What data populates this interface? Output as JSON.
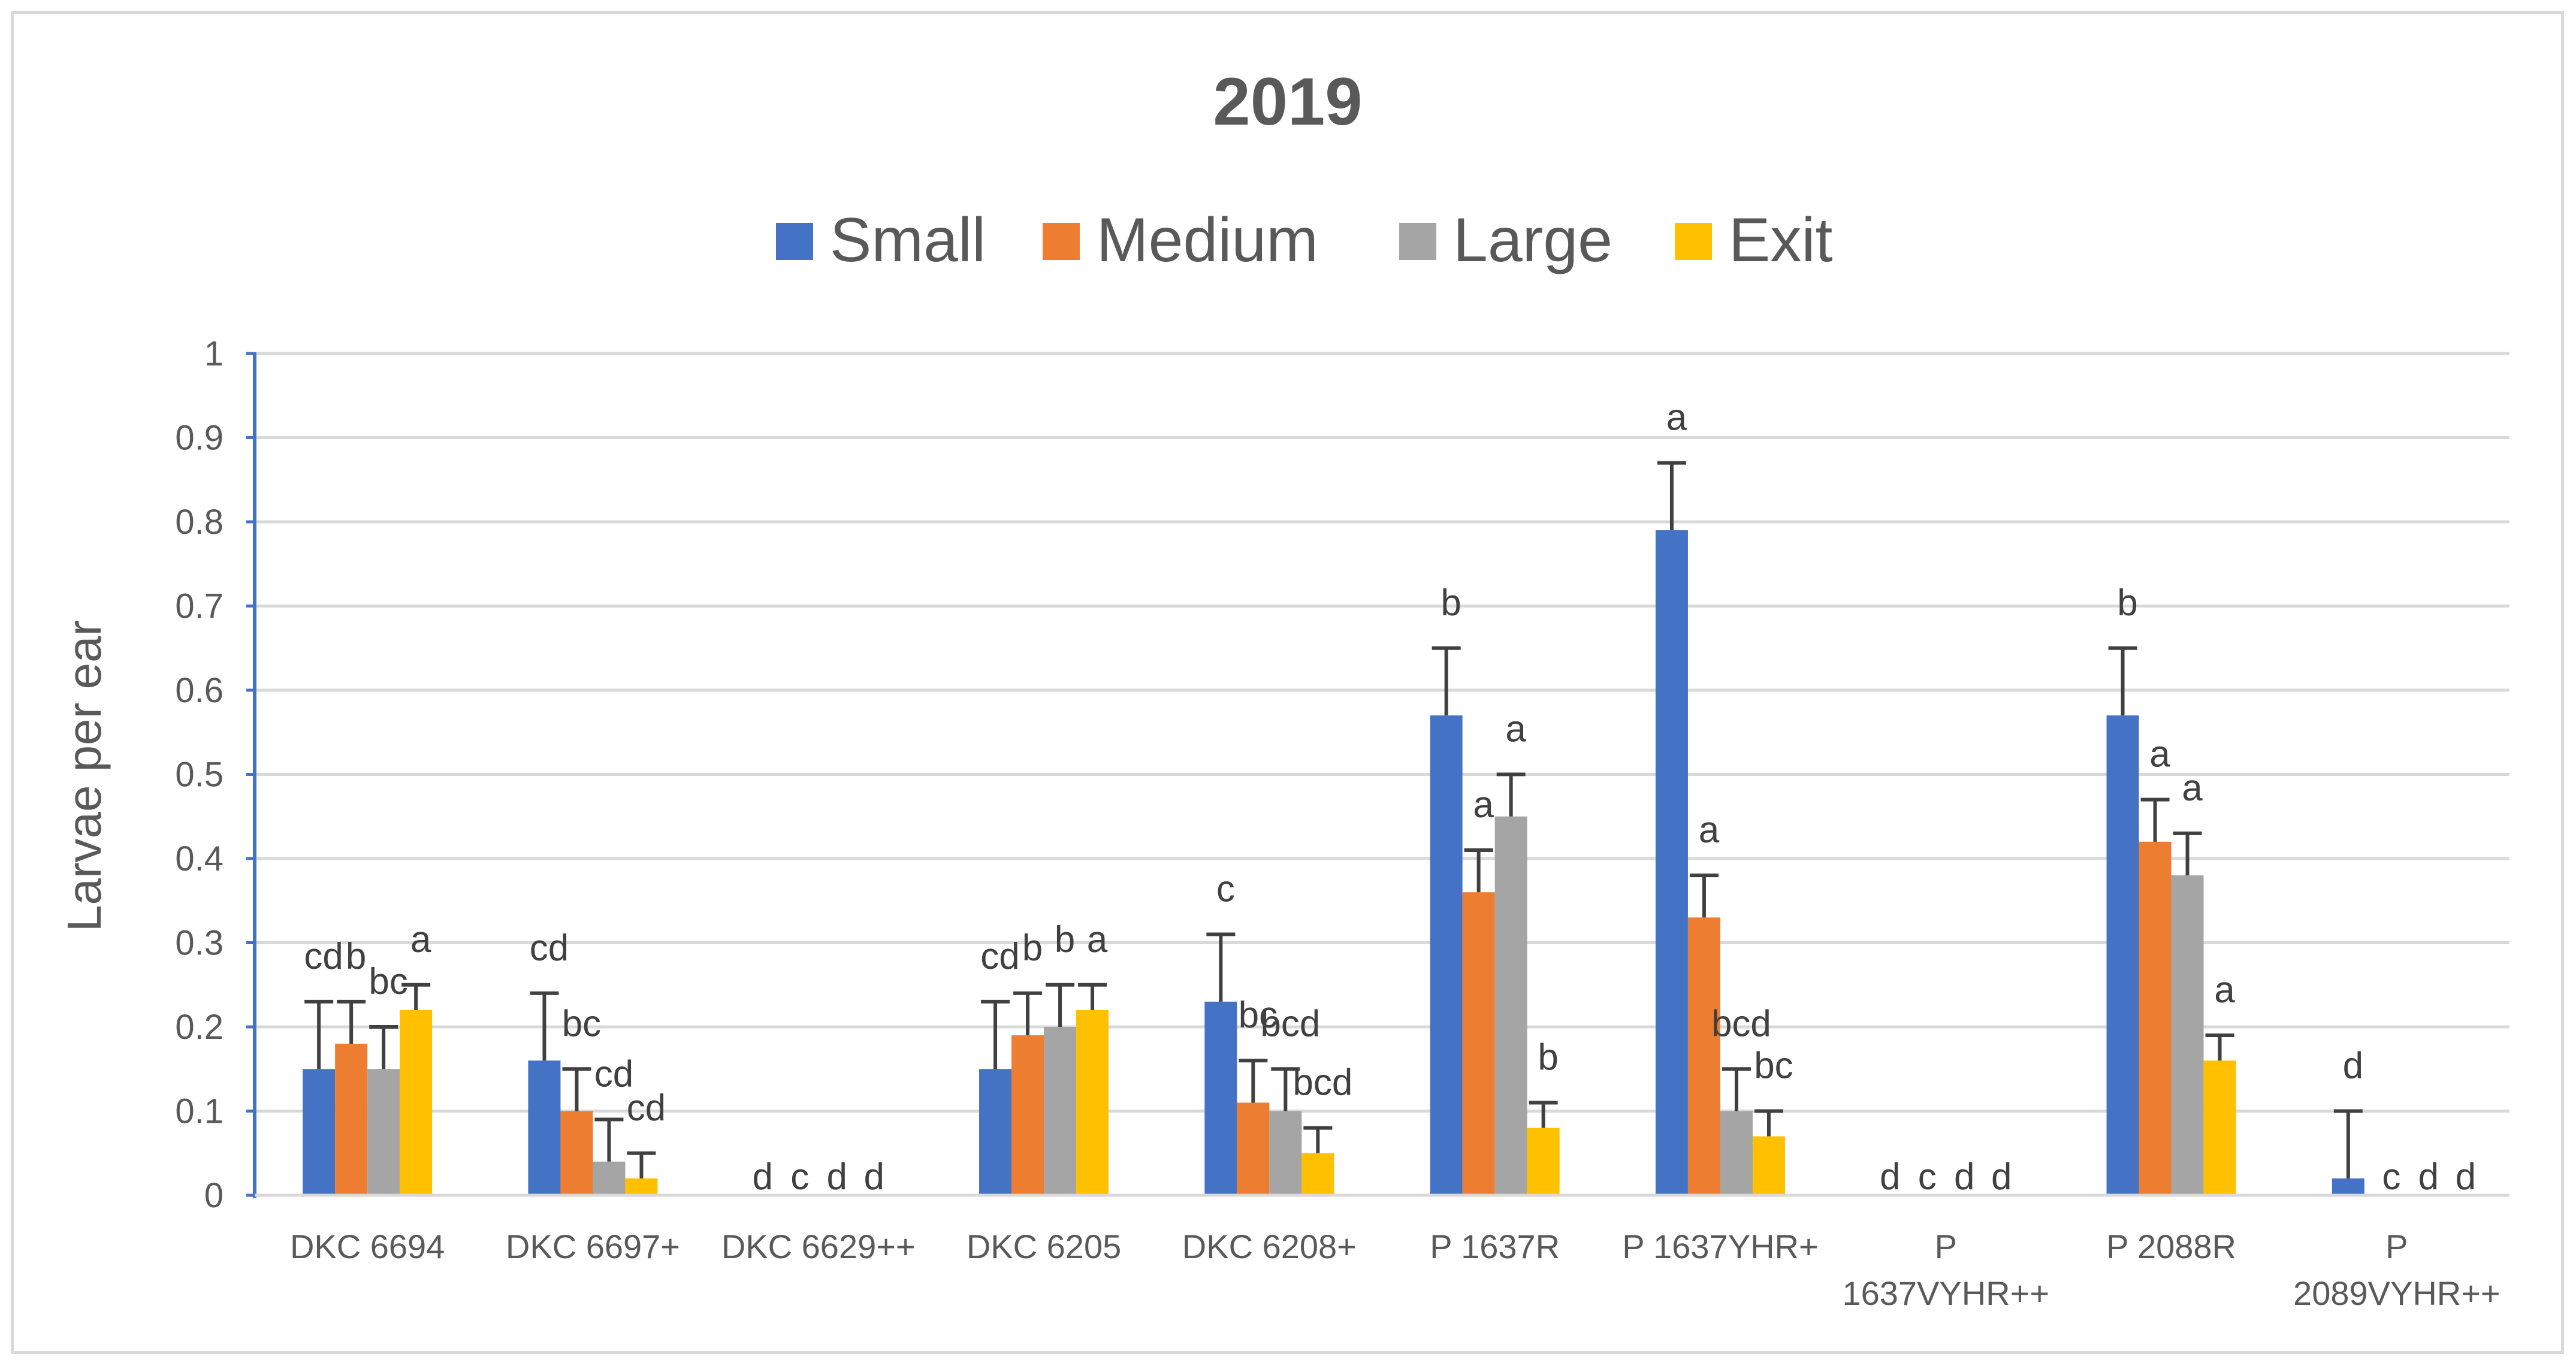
{
  "chart_data": {
    "type": "bar",
    "title": "2019",
    "xlabel": "",
    "ylabel": "Larvae per ear",
    "ylim": [
      0,
      1
    ],
    "yticks": [
      "0",
      "0.1",
      "0.2",
      "0.3",
      "0.4",
      "0.5",
      "0.6",
      "0.7",
      "0.8",
      "0.9",
      "1"
    ],
    "grid": true,
    "legend_position": "top",
    "categories": [
      [
        "DKC 6694"
      ],
      [
        "DKC 6697+"
      ],
      [
        "DKC 6629++"
      ],
      [
        "DKC 6205"
      ],
      [
        "DKC 6208+"
      ],
      [
        "P 1637R"
      ],
      [
        "P 1637YHR+"
      ],
      [
        "P",
        "1637VYHR++"
      ],
      [
        "P 2088R"
      ],
      [
        "P",
        "2089VYHR++"
      ]
    ],
    "series": [
      {
        "name": "Small",
        "color": "#4472C4",
        "values": [
          0.15,
          0.16,
          0,
          0.15,
          0.23,
          0.57,
          0.79,
          0,
          0.57,
          0.02
        ],
        "errors": [
          0.08,
          0.08,
          0,
          0.08,
          0.08,
          0.08,
          0.08,
          0,
          0.08,
          0.08
        ],
        "letters": [
          "cd",
          "cd",
          "d",
          "cd",
          "c",
          "b",
          "a",
          "d",
          "b",
          "d"
        ]
      },
      {
        "name": "Medium",
        "color": "#ED7D31",
        "values": [
          0.18,
          0.1,
          0,
          0.19,
          0.11,
          0.36,
          0.33,
          0,
          0.42,
          0
        ],
        "errors": [
          0.05,
          0.05,
          0,
          0.05,
          0.05,
          0.05,
          0.05,
          0,
          0.05,
          0
        ],
        "letters": [
          "b",
          "bc",
          "c",
          "b",
          "bc",
          "a",
          "a",
          "c",
          "a",
          "c"
        ]
      },
      {
        "name": "Large",
        "color": "#A5A5A5",
        "values": [
          0.15,
          0.04,
          0,
          0.2,
          0.1,
          0.45,
          0.1,
          0,
          0.38,
          0
        ],
        "errors": [
          0.05,
          0.05,
          0,
          0.05,
          0.05,
          0.05,
          0.05,
          0,
          0.05,
          0
        ],
        "letters": [
          "bc",
          "cd",
          "d",
          "b",
          "bcd",
          "a",
          "bcd",
          "d",
          "a",
          "d"
        ]
      },
      {
        "name": "Exit",
        "color": "#FFC000",
        "values": [
          0.22,
          0.02,
          0,
          0.22,
          0.05,
          0.08,
          0.07,
          0,
          0.16,
          0
        ],
        "errors": [
          0.03,
          0.03,
          0,
          0.03,
          0.03,
          0.03,
          0.03,
          0,
          0.03,
          0
        ],
        "letters": [
          "a",
          "cd",
          "d",
          "a",
          "bcd",
          "b",
          "bc",
          "d",
          "a",
          "d"
        ]
      }
    ]
  }
}
